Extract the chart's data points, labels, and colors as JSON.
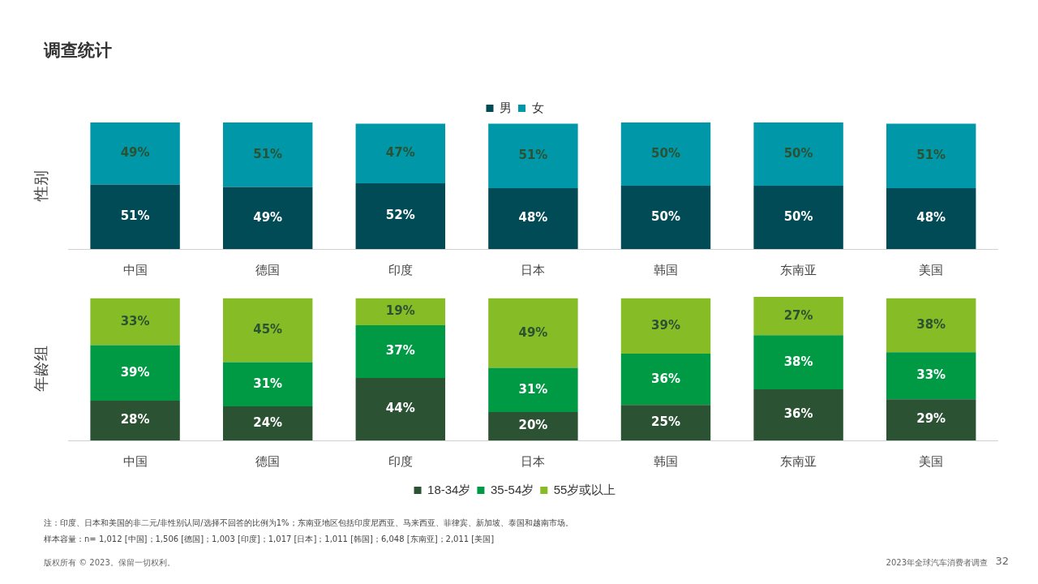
{
  "chart_data": [
    {
      "type": "bar",
      "title": "调查统计",
      "ylabel": "性别",
      "stacked": true,
      "legend": "top",
      "categories": [
        "中国",
        "德国",
        "印度",
        "日本",
        "韩国",
        "东南亚",
        "美国"
      ],
      "series": [
        {
          "name": "男",
          "color": "#004b55",
          "values": [
            51,
            49,
            52,
            48,
            50,
            50,
            48
          ],
          "value_labels": [
            "51%",
            "49%",
            "52%",
            "48%",
            "50%",
            "50%",
            "48%"
          ]
        },
        {
          "name": "女",
          "color": "#0097a9",
          "values": [
            49,
            51,
            47,
            51,
            50,
            50,
            51
          ],
          "value_labels": [
            "49%",
            "51%",
            "47%",
            "51%",
            "50%",
            "50%",
            "51%"
          ]
        }
      ]
    },
    {
      "type": "bar",
      "ylabel": "年龄组",
      "stacked": true,
      "legend": "bottom",
      "categories": [
        "中国",
        "德国",
        "印度",
        "日本",
        "韩国",
        "东南亚",
        "美国"
      ],
      "series": [
        {
          "name": "18-34岁",
          "color": "#2c5234",
          "values": [
            28,
            24,
            44,
            20,
            25,
            36,
            29
          ],
          "value_labels": [
            "28%",
            "24%",
            "44%",
            "20%",
            "25%",
            "36%",
            "29%"
          ]
        },
        {
          "name": "35-54岁",
          "color": "#009a44",
          "values": [
            39,
            31,
            37,
            31,
            36,
            38,
            33
          ],
          "value_labels": [
            "39%",
            "31%",
            "37%",
            "31%",
            "36%",
            "38%",
            "33%"
          ]
        },
        {
          "name": "55岁或以上",
          "color": "#86bc25",
          "values": [
            33,
            45,
            19,
            49,
            39,
            27,
            38
          ],
          "value_labels": [
            "33%",
            "45%",
            "19%",
            "49%",
            "39%",
            "27%",
            "38%"
          ]
        }
      ],
      "annotations": [
        "注：印度、日本和美国的非二元/非性别认同/选择不回答的比例为1%；东南亚地区包括印度尼西亚、马来西亚、菲律宾、新加坡、泰国和越南市场。",
        "样本容量：n= 1,012 [中国]；1,506 [德国]；1,003 [印度]；1,017 [日本]；1,011 [韩国]；6,048 [东南亚]；2,011 [美国]",
        "版权所有 © 2023。保留一切权利。",
        "2023年全球汽车消费者调查",
        "32"
      ]
    }
  ]
}
